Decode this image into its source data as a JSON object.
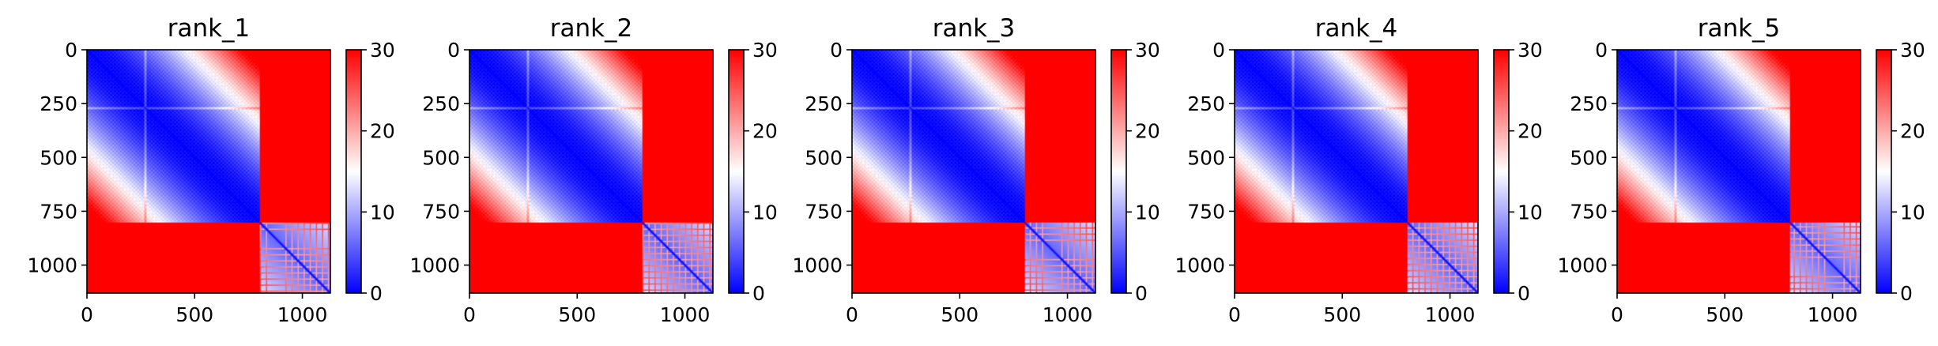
{
  "chart_data": {
    "type": "heatmap",
    "colormap": "bwr",
    "colors": {
      "low": "#0000ff",
      "mid": "#ffffff",
      "high": "#ff0000"
    },
    "n": 1130,
    "block_boundary": 800,
    "highlight_index": 270,
    "xlim": [
      0,
      1130
    ],
    "ylim": [
      1130,
      0
    ],
    "xticks": [
      "0",
      "500",
      "1000"
    ],
    "yticks": [
      "0",
      "250",
      "500",
      "750",
      "1000"
    ],
    "colorbar": {
      "vmin": 0,
      "vmax": 30,
      "ticks": [
        "0",
        "10",
        "20",
        "30"
      ]
    },
    "panels": [
      {
        "title": "rank_1"
      },
      {
        "title": "rank_2"
      },
      {
        "title": "rank_3"
      },
      {
        "title": "rank_4"
      },
      {
        "title": "rank_5"
      }
    ]
  }
}
